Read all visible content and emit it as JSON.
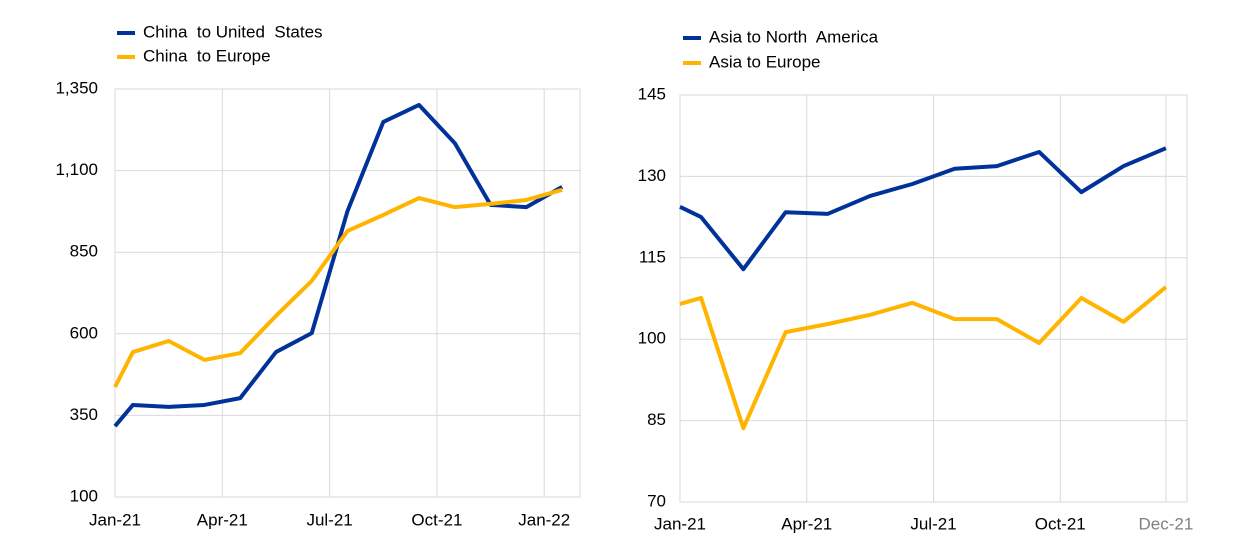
{
  "chart_data": [
    {
      "type": "line",
      "xticks": [
        {
          "value": 0,
          "label": "Jan-21"
        },
        {
          "value": 3,
          "label": "Apr-21"
        },
        {
          "value": 6,
          "label": "Jul-21"
        },
        {
          "value": 9,
          "label": "Oct-21"
        },
        {
          "value": 12,
          "label": "Jan-22"
        }
      ],
      "xlim": [
        0,
        13
      ],
      "ylim": [
        100,
        1350
      ],
      "yticks": [
        100,
        350,
        600,
        850,
        {
          "value": 1100,
          "label": "1,100"
        },
        {
          "value": 1350,
          "label": "1,350"
        }
      ],
      "grid": true,
      "x": [
        0,
        0.5,
        1.5,
        2.5,
        3.5,
        4.5,
        5.5,
        6.5,
        7.5,
        8.5,
        9.5,
        10.5,
        11.5,
        12.5
      ],
      "series": [
        {
          "name": "China  to United  States",
          "color": "#003299",
          "values": [
            317,
            382,
            376,
            382,
            403,
            544,
            602,
            976,
            1249,
            1301,
            1184,
            995,
            988,
            1050
          ]
        },
        {
          "name": "China  to Europe",
          "color": "#ffb400",
          "values": [
            437,
            544,
            578,
            520,
            541,
            655,
            762,
            915,
            964,
            1016,
            988,
            998,
            1010,
            1041
          ]
        }
      ]
    },
    {
      "type": "line",
      "xticks": [
        {
          "value": 0,
          "label": "Jan-21"
        },
        {
          "value": 3,
          "label": "Apr-21"
        },
        {
          "value": 6,
          "label": "Jul-21"
        },
        {
          "value": 9,
          "label": "Oct-21"
        },
        {
          "value": 11.5,
          "label": "Dec-21"
        }
      ],
      "xlim": [
        0,
        12
      ],
      "ylim": [
        70,
        145
      ],
      "yticks": [
        70,
        85,
        100,
        115,
        130,
        145
      ],
      "grid": true,
      "x": [
        0,
        0.5,
        1.5,
        2.5,
        3.5,
        4.5,
        5.5,
        6.5,
        7.5,
        8.5,
        9.5,
        10.5,
        11.5
      ],
      "series": [
        {
          "name": "Asia to North  America",
          "color": "#003299",
          "values": [
            124.4,
            122.5,
            112.9,
            123.4,
            123.1,
            126.4,
            128.6,
            131.4,
            131.9,
            134.5,
            127.1,
            131.9,
            135.2
          ]
        },
        {
          "name": "Asia to Europe",
          "color": "#ffb400",
          "values": [
            106.5,
            107.6,
            83.6,
            101.3,
            102.8,
            104.5,
            106.7,
            103.7,
            103.7,
            99.3,
            107.6,
            103.2,
            109.6
          ]
        }
      ]
    }
  ]
}
